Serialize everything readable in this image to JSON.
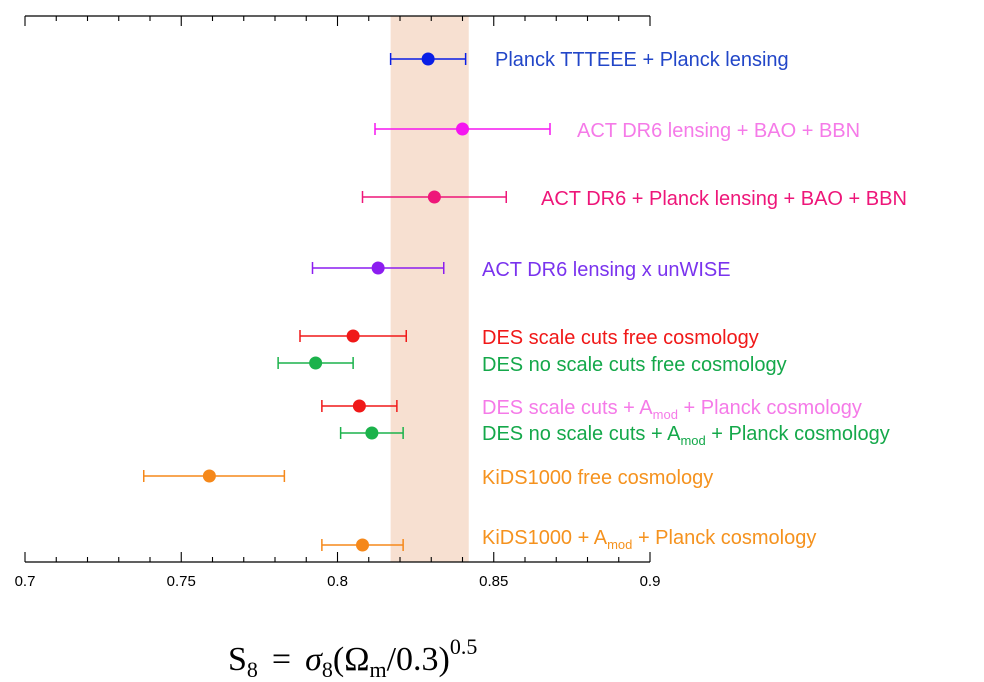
{
  "chart_data": {
    "type": "scatter",
    "orientation": "horizontal-error-bars",
    "xlim": [
      0.7,
      0.9
    ],
    "x_ticks": [
      0.7,
      0.75,
      0.8,
      0.85,
      0.9
    ],
    "x_tick_labels": [
      "0.7",
      "0.75",
      "0.8",
      "0.85",
      "0.9"
    ],
    "x_minor_step": 0.01,
    "grid": false,
    "xlabel": {
      "S": "S",
      "s_sub": "8",
      "eq": "=",
      "sigma": "σ",
      "sigma_sub": "8",
      "open": "(Ω",
      "omega_sub": "m",
      "close": "/0.3)",
      "power": "0.5"
    },
    "band": {
      "x": [
        0.817,
        0.842
      ],
      "color": "#f7e0d1"
    },
    "series": [
      {
        "center": 0.829,
        "low": 0.817,
        "high": 0.841,
        "color": "#0a1ee6",
        "label_color": "#2246c8",
        "label": "Planck TTTEEE + Planck lensing"
      },
      {
        "center": 0.84,
        "low": 0.812,
        "high": 0.868,
        "color": "#f516f0",
        "label_color": "#f57ae8",
        "label": "ACT DR6 lensing + BAO + BBN"
      },
      {
        "center": 0.831,
        "low": 0.808,
        "high": 0.854,
        "color": "#ee1679",
        "label_color": "#ee1679",
        "label": "ACT DR6  + Planck  lensing + BAO + BBN"
      },
      {
        "center": 0.813,
        "low": 0.792,
        "high": 0.834,
        "color": "#8c1df0",
        "label_color": "#7a33ee",
        "label": "ACT DR6 lensing x unWISE"
      },
      {
        "center": 0.805,
        "low": 0.788,
        "high": 0.822,
        "color": "#f01818",
        "label_color": "#f01818",
        "label": "DES scale cuts free cosmology"
      },
      {
        "center": 0.793,
        "low": 0.781,
        "high": 0.805,
        "color": "#1bb24b",
        "label_color": "#14a84a",
        "label": "DES no scale cuts free cosmology"
      },
      {
        "center": 0.807,
        "low": 0.795,
        "high": 0.819,
        "color": "#f01818",
        "label_color": "#f57ae8",
        "label": "DES scale cuts + A",
        "label_sub": "mod",
        "label_post": " + Planck cosmology"
      },
      {
        "center": 0.811,
        "low": 0.801,
        "high": 0.821,
        "color": "#1bb24b",
        "label_color": "#14a84a",
        "label": "DES no scale cuts + A",
        "label_sub": "mod",
        "label_post": " + Planck cosmology"
      },
      {
        "center": 0.759,
        "low": 0.738,
        "high": 0.783,
        "color": "#f5881a",
        "label_color": "#f5921e",
        "label": "KiDS1000  free cosmology"
      },
      {
        "center": 0.808,
        "low": 0.795,
        "high": 0.821,
        "color": "#f5881a",
        "label_color": "#f5921e",
        "label": "KiDS1000  + A",
        "label_sub": "mod",
        "label_post": "  + Planck cosmology"
      }
    ]
  }
}
